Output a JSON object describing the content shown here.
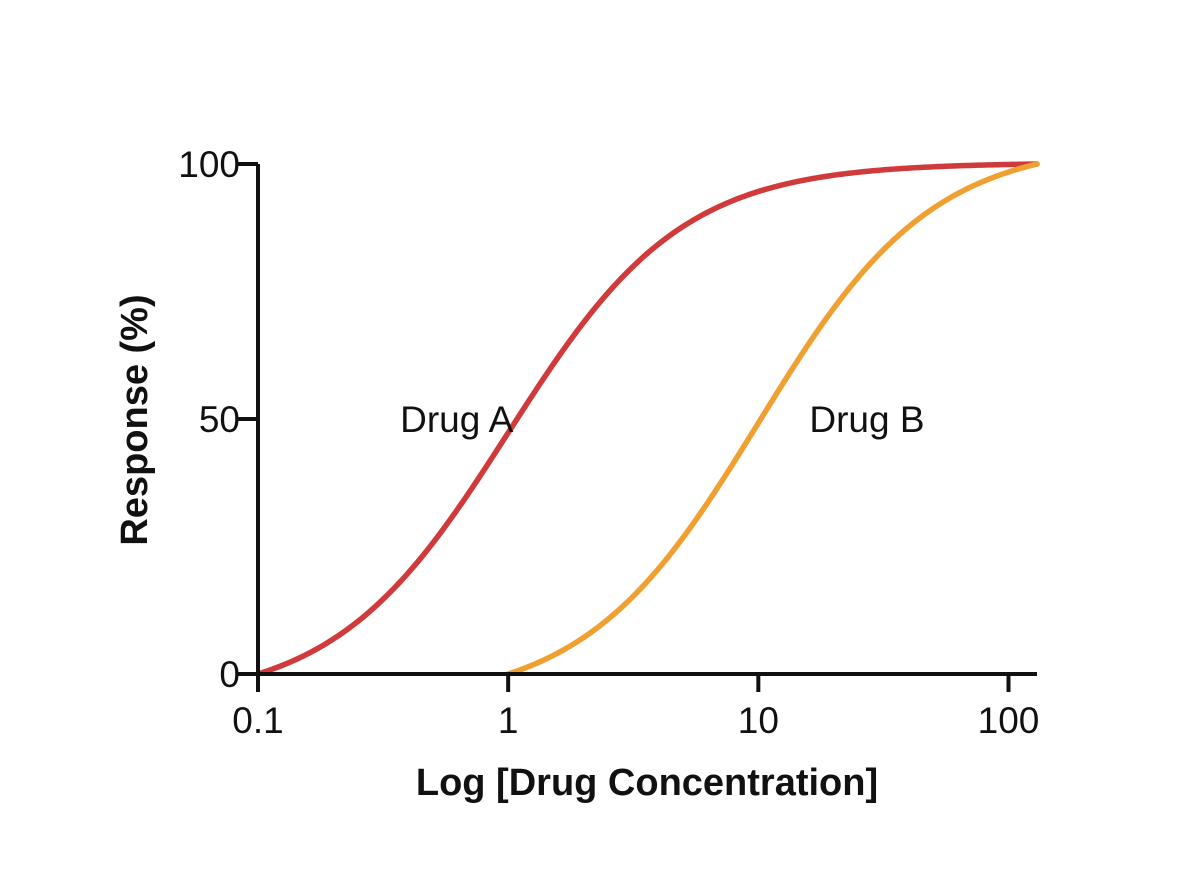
{
  "chart_data": {
    "type": "line",
    "title": "",
    "xlabel": "Log [Drug Concentration]",
    "ylabel": "Response (%)",
    "x_scale": "log",
    "xlim": [
      0.1,
      130
    ],
    "ylim": [
      0,
      100
    ],
    "x_ticks": [
      {
        "value": 0.1,
        "label": "0.1"
      },
      {
        "value": 1,
        "label": "1"
      },
      {
        "value": 10,
        "label": "10"
      },
      {
        "value": 100,
        "label": "100"
      }
    ],
    "y_ticks": [
      {
        "value": 0,
        "label": "0"
      },
      {
        "value": 50,
        "label": "50"
      },
      {
        "value": 100,
        "label": "100"
      }
    ],
    "grid": false,
    "legend": "none",
    "series": [
      {
        "name": "Drug A",
        "color": "#d03a3a",
        "x": [
          0.1,
          0.2,
          0.3,
          0.5,
          0.7,
          1,
          1.5,
          2,
          3,
          5,
          10,
          20,
          50,
          130
        ],
        "y": [
          0,
          3,
          9,
          25,
          38,
          50,
          65,
          75,
          86,
          94,
          99,
          100,
          100,
          100
        ]
      },
      {
        "name": "Drug B",
        "color": "#f0a030",
        "x": [
          1,
          2,
          3,
          5,
          7,
          10,
          15,
          20,
          30,
          50,
          80,
          130
        ],
        "y": [
          0,
          3,
          9,
          25,
          38,
          50,
          65,
          75,
          86,
          94,
          98,
          100
        ]
      }
    ],
    "annotations": [
      {
        "text": "Drug A",
        "x": 0.37,
        "y": 50
      },
      {
        "text": "Drug B",
        "x": 16,
        "y": 50
      }
    ]
  }
}
